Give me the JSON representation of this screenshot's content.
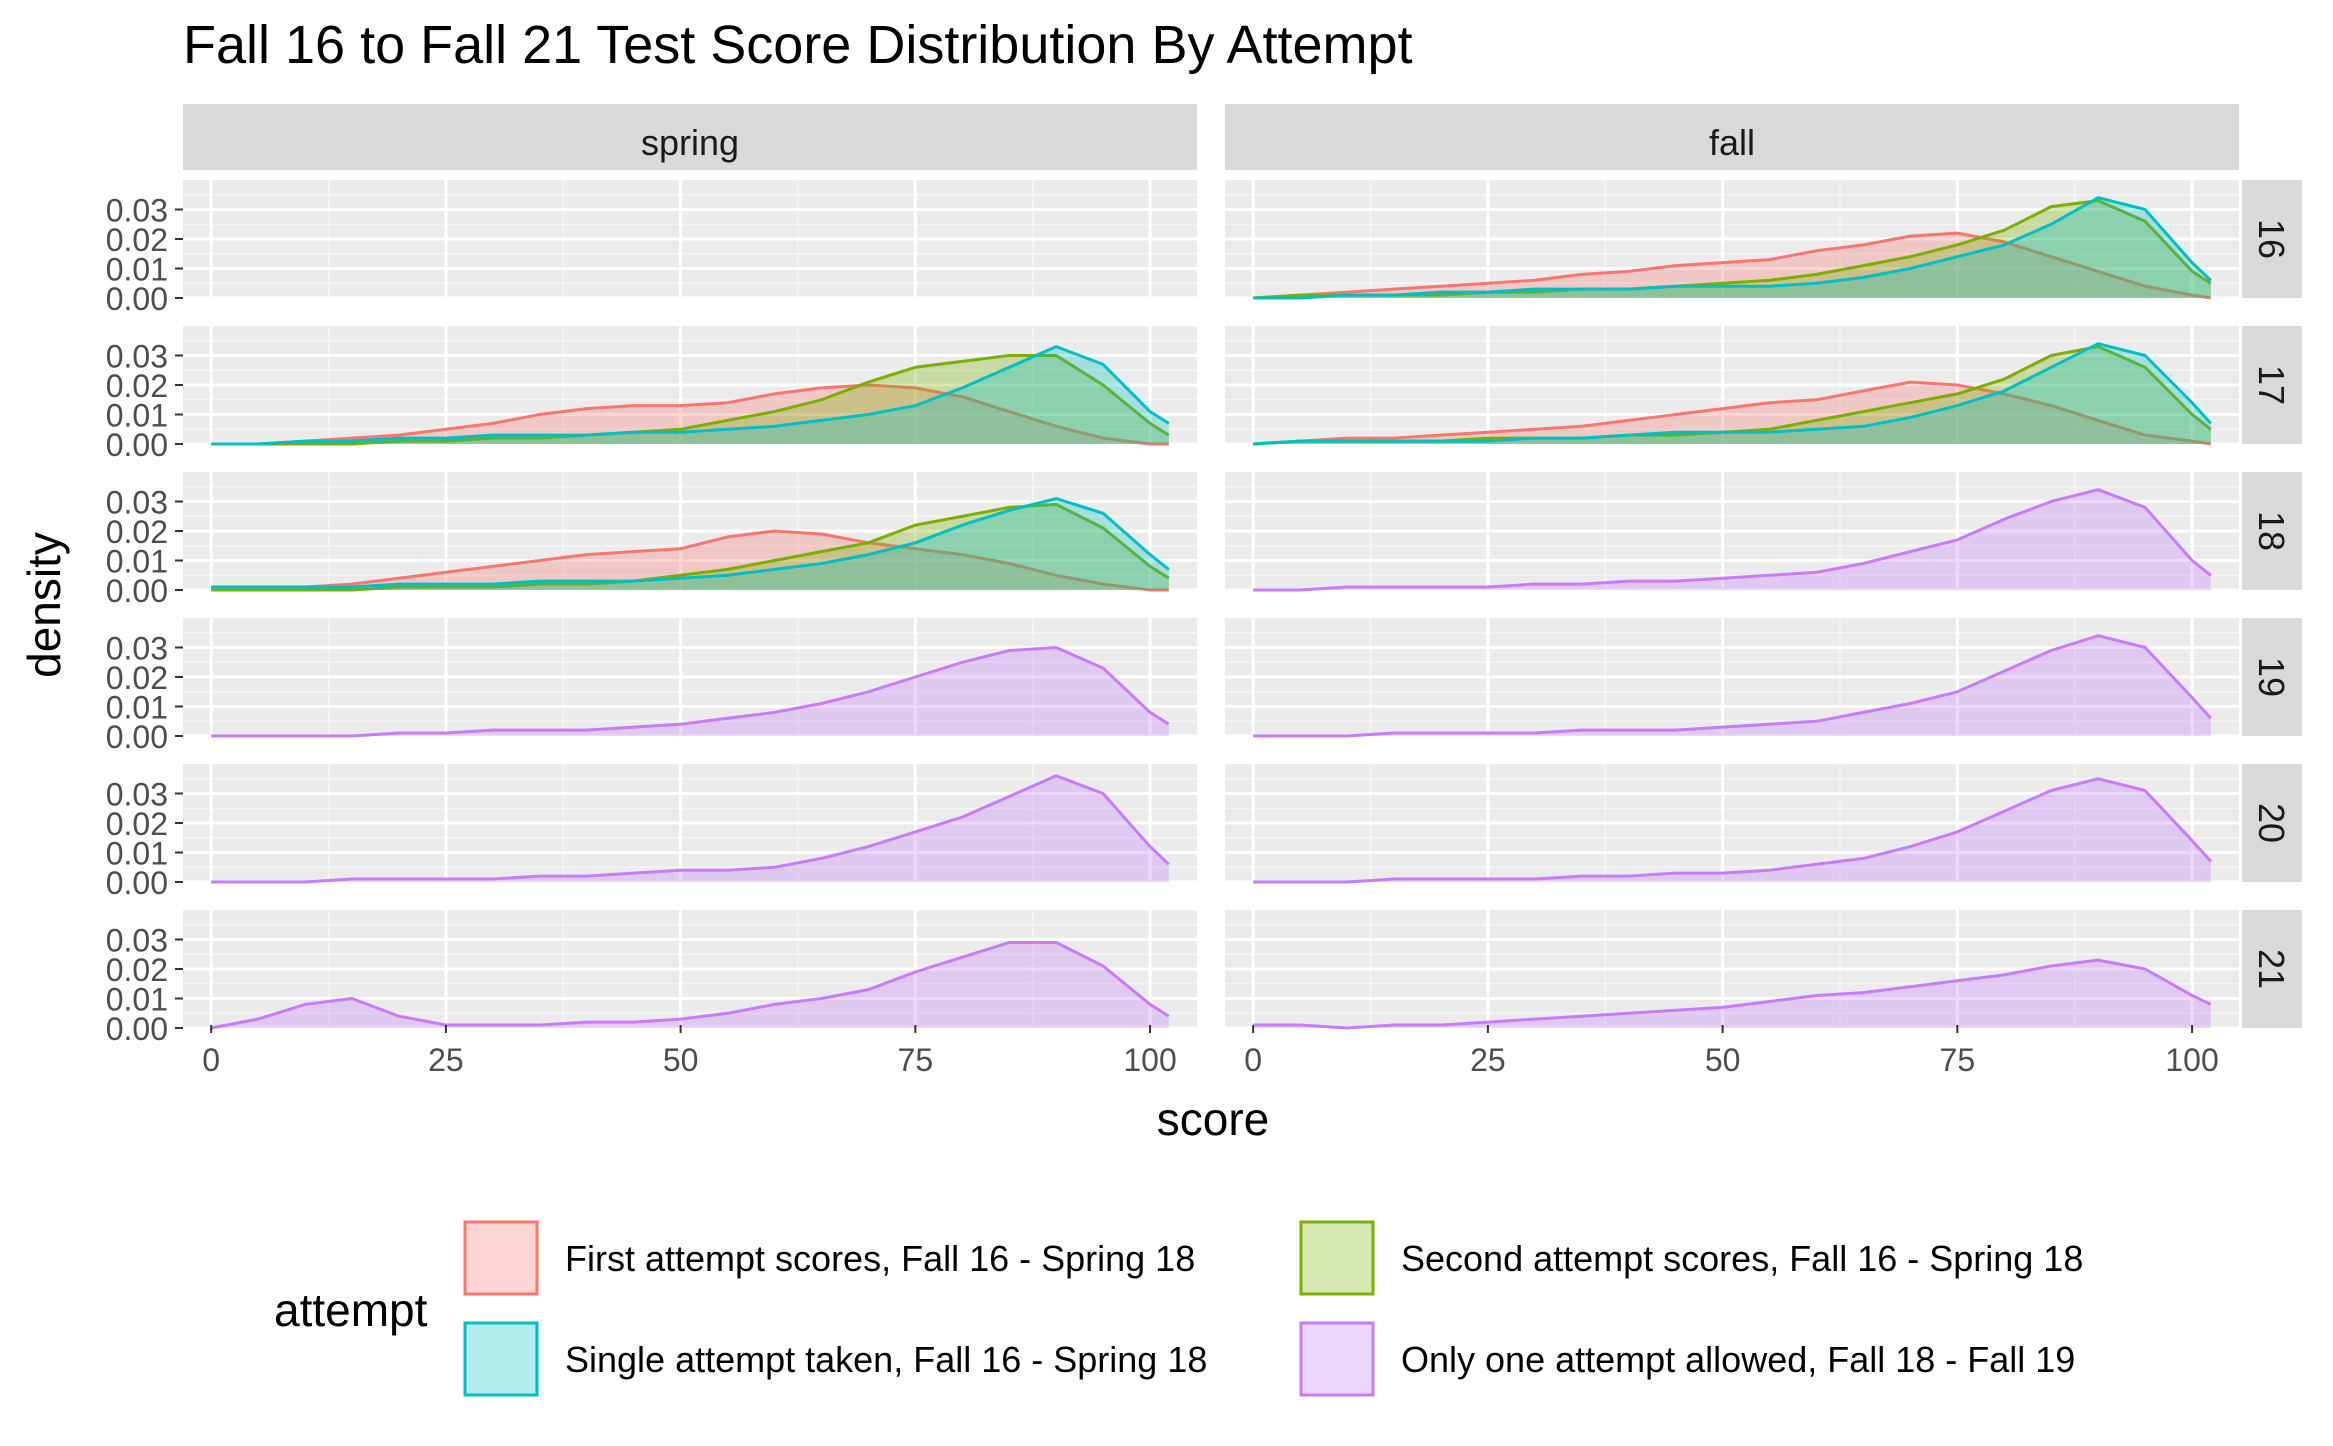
{
  "chart_data": {
    "type": "area",
    "title": "Fall 16 to Fall 21 Test Score Distribution By Attempt",
    "xlabel": "score",
    "ylabel": "density",
    "xlim": [
      -3,
      105
    ],
    "ylim": [
      0,
      0.04
    ],
    "x_ticks": [
      0,
      25,
      50,
      75,
      100
    ],
    "y_ticks": [
      0.0,
      0.01,
      0.02,
      0.03
    ],
    "y_tick_labels": [
      "0.00",
      "0.01",
      "0.02",
      "0.03"
    ],
    "columns": [
      "spring",
      "fall"
    ],
    "rows": [
      "16",
      "17",
      "18",
      "19",
      "20",
      "21"
    ],
    "legend": {
      "title": "attempt",
      "placement": "bottom",
      "entries": [
        {
          "key": "first",
          "label": "First attempt scores, Fall 16 - Spring 18",
          "color": "#F8766D"
        },
        {
          "key": "second",
          "label": "Second attempt scores, Fall 16 - Spring 18",
          "color": "#7CAE00"
        },
        {
          "key": "single",
          "label": "Single attempt taken, Fall 16 - Spring 18",
          "color": "#00BFC4"
        },
        {
          "key": "only",
          "label": "Only one attempt allowed, Fall 18 - Fall 19",
          "color": "#C77CFF"
        }
      ]
    },
    "x": [
      0,
      5,
      10,
      15,
      20,
      25,
      30,
      35,
      40,
      45,
      50,
      55,
      60,
      65,
      70,
      75,
      80,
      85,
      90,
      95,
      100,
      102
    ],
    "panels": [
      {
        "row": "16",
        "col": "spring",
        "series": []
      },
      {
        "row": "16",
        "col": "fall",
        "series": [
          {
            "key": "first",
            "values": [
              0.0,
              0.001,
              0.002,
              0.003,
              0.004,
              0.005,
              0.006,
              0.008,
              0.009,
              0.011,
              0.012,
              0.013,
              0.016,
              0.018,
              0.021,
              0.022,
              0.019,
              0.014,
              0.009,
              0.004,
              0.001,
              0.0
            ]
          },
          {
            "key": "second",
            "values": [
              0.0,
              0.001,
              0.001,
              0.001,
              0.001,
              0.002,
              0.002,
              0.003,
              0.003,
              0.004,
              0.005,
              0.006,
              0.008,
              0.011,
              0.014,
              0.018,
              0.023,
              0.031,
              0.033,
              0.026,
              0.009,
              0.005
            ]
          },
          {
            "key": "single",
            "values": [
              0.0,
              0.0,
              0.001,
              0.001,
              0.002,
              0.002,
              0.003,
              0.003,
              0.003,
              0.004,
              0.004,
              0.004,
              0.005,
              0.007,
              0.01,
              0.014,
              0.018,
              0.025,
              0.034,
              0.03,
              0.012,
              0.006
            ]
          }
        ]
      },
      {
        "row": "17",
        "col": "spring",
        "series": [
          {
            "key": "first",
            "values": [
              0.0,
              0.0,
              0.001,
              0.002,
              0.003,
              0.005,
              0.007,
              0.01,
              0.012,
              0.013,
              0.013,
              0.014,
              0.017,
              0.019,
              0.02,
              0.019,
              0.016,
              0.011,
              0.006,
              0.002,
              0.0,
              0.0
            ]
          },
          {
            "key": "second",
            "values": [
              0.0,
              0.0,
              0.0,
              0.0,
              0.001,
              0.001,
              0.002,
              0.002,
              0.003,
              0.004,
              0.005,
              0.008,
              0.011,
              0.015,
              0.021,
              0.026,
              0.028,
              0.03,
              0.03,
              0.02,
              0.007,
              0.003
            ]
          },
          {
            "key": "single",
            "values": [
              0.0,
              0.0,
              0.001,
              0.001,
              0.002,
              0.002,
              0.003,
              0.003,
              0.003,
              0.004,
              0.004,
              0.005,
              0.006,
              0.008,
              0.01,
              0.013,
              0.019,
              0.026,
              0.033,
              0.027,
              0.011,
              0.007
            ]
          }
        ]
      },
      {
        "row": "17",
        "col": "fall",
        "series": [
          {
            "key": "first",
            "values": [
              0.0,
              0.001,
              0.002,
              0.002,
              0.003,
              0.004,
              0.005,
              0.006,
              0.008,
              0.01,
              0.012,
              0.014,
              0.015,
              0.018,
              0.021,
              0.02,
              0.017,
              0.013,
              0.008,
              0.003,
              0.001,
              0.0
            ]
          },
          {
            "key": "second",
            "values": [
              0.0,
              0.001,
              0.001,
              0.001,
              0.001,
              0.002,
              0.002,
              0.002,
              0.003,
              0.003,
              0.004,
              0.005,
              0.008,
              0.011,
              0.014,
              0.017,
              0.022,
              0.03,
              0.033,
              0.026,
              0.01,
              0.005
            ]
          },
          {
            "key": "single",
            "values": [
              0.0,
              0.001,
              0.001,
              0.001,
              0.001,
              0.001,
              0.002,
              0.002,
              0.003,
              0.004,
              0.004,
              0.004,
              0.005,
              0.006,
              0.009,
              0.013,
              0.018,
              0.026,
              0.034,
              0.03,
              0.014,
              0.007
            ]
          }
        ]
      },
      {
        "row": "18",
        "col": "spring",
        "series": [
          {
            "key": "first",
            "values": [
              0.0,
              0.0,
              0.001,
              0.002,
              0.004,
              0.006,
              0.008,
              0.01,
              0.012,
              0.013,
              0.014,
              0.018,
              0.02,
              0.019,
              0.016,
              0.014,
              0.012,
              0.009,
              0.005,
              0.002,
              0.0,
              0.0
            ]
          },
          {
            "key": "second",
            "values": [
              0.0,
              0.0,
              0.0,
              0.0,
              0.001,
              0.001,
              0.001,
              0.002,
              0.002,
              0.003,
              0.005,
              0.007,
              0.01,
              0.013,
              0.016,
              0.022,
              0.025,
              0.028,
              0.029,
              0.021,
              0.008,
              0.004
            ]
          },
          {
            "key": "single",
            "values": [
              0.001,
              0.001,
              0.001,
              0.001,
              0.002,
              0.002,
              0.002,
              0.003,
              0.003,
              0.003,
              0.004,
              0.005,
              0.007,
              0.009,
              0.012,
              0.016,
              0.022,
              0.027,
              0.031,
              0.026,
              0.012,
              0.007
            ]
          }
        ]
      },
      {
        "row": "18",
        "col": "fall",
        "series": [
          {
            "key": "only",
            "values": [
              0.0,
              0.0,
              0.001,
              0.001,
              0.001,
              0.001,
              0.002,
              0.002,
              0.003,
              0.003,
              0.004,
              0.005,
              0.006,
              0.009,
              0.013,
              0.017,
              0.024,
              0.03,
              0.034,
              0.028,
              0.01,
              0.005
            ]
          }
        ]
      },
      {
        "row": "19",
        "col": "spring",
        "series": [
          {
            "key": "only",
            "values": [
              0.0,
              0.0,
              0.0,
              0.0,
              0.001,
              0.001,
              0.002,
              0.002,
              0.002,
              0.003,
              0.004,
              0.006,
              0.008,
              0.011,
              0.015,
              0.02,
              0.025,
              0.029,
              0.03,
              0.023,
              0.008,
              0.004
            ]
          }
        ]
      },
      {
        "row": "19",
        "col": "fall",
        "series": [
          {
            "key": "only",
            "values": [
              0.0,
              0.0,
              0.0,
              0.001,
              0.001,
              0.001,
              0.001,
              0.002,
              0.002,
              0.002,
              0.003,
              0.004,
              0.005,
              0.008,
              0.011,
              0.015,
              0.022,
              0.029,
              0.034,
              0.03,
              0.013,
              0.006
            ]
          }
        ]
      },
      {
        "row": "20",
        "col": "spring",
        "series": [
          {
            "key": "only",
            "values": [
              0.0,
              0.0,
              0.0,
              0.001,
              0.001,
              0.001,
              0.001,
              0.002,
              0.002,
              0.003,
              0.004,
              0.004,
              0.005,
              0.008,
              0.012,
              0.017,
              0.022,
              0.029,
              0.036,
              0.03,
              0.012,
              0.006
            ]
          }
        ]
      },
      {
        "row": "20",
        "col": "fall",
        "series": [
          {
            "key": "only",
            "values": [
              0.0,
              0.0,
              0.0,
              0.001,
              0.001,
              0.001,
              0.001,
              0.002,
              0.002,
              0.003,
              0.003,
              0.004,
              0.006,
              0.008,
              0.012,
              0.017,
              0.024,
              0.031,
              0.035,
              0.031,
              0.014,
              0.007
            ]
          }
        ]
      },
      {
        "row": "21",
        "col": "spring",
        "series": [
          {
            "key": "only",
            "values": [
              0.0,
              0.003,
              0.008,
              0.01,
              0.004,
              0.001,
              0.001,
              0.001,
              0.002,
              0.002,
              0.003,
              0.005,
              0.008,
              0.01,
              0.013,
              0.019,
              0.024,
              0.029,
              0.029,
              0.021,
              0.008,
              0.004
            ]
          }
        ]
      },
      {
        "row": "21",
        "col": "fall",
        "series": [
          {
            "key": "only",
            "values": [
              0.001,
              0.001,
              0.0,
              0.001,
              0.001,
              0.002,
              0.003,
              0.004,
              0.005,
              0.006,
              0.007,
              0.009,
              0.011,
              0.012,
              0.014,
              0.016,
              0.018,
              0.021,
              0.023,
              0.02,
              0.011,
              0.008
            ]
          }
        ]
      }
    ]
  }
}
